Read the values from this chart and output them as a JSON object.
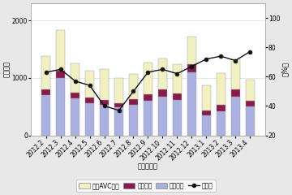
{
  "categories": [
    "2012.2",
    "2012.3",
    "2012.4",
    "2012.5",
    "2012.6",
    "2012.7",
    "2012.8",
    "2012.9",
    "2012.10",
    "2012.11",
    "2012.12",
    "2013.1",
    "2013.2",
    "2013.3",
    "2013.4"
  ],
  "映像機器": [
    700,
    1000,
    650,
    560,
    530,
    490,
    530,
    600,
    680,
    620,
    1100,
    350,
    420,
    680,
    510
  ],
  "音声機器": [
    100,
    130,
    100,
    95,
    90,
    75,
    95,
    115,
    125,
    115,
    145,
    85,
    115,
    125,
    95
  ],
  "カーAVC機器": [
    580,
    700,
    500,
    470,
    540,
    430,
    440,
    550,
    530,
    510,
    480,
    440,
    550,
    520,
    360
  ],
  "前年比": [
    63,
    65,
    57,
    54,
    40,
    37,
    50,
    63,
    65,
    62,
    67,
    72,
    74,
    71,
    77
  ],
  "bar_colors": {
    "カーAVC機器": "#f0f0c0",
    "音声機器": "#8b1a4a",
    "映像機器": "#aab0e0"
  },
  "line_color": "#111111",
  "background_color": "#e8e8e8",
  "plot_bg": "#ffffff",
  "ylabel_left": "（億円）",
  "ylabel_right": "（%）",
  "xlabel": "（年・月）",
  "ylim_left": [
    0,
    2300
  ],
  "ylim_right": [
    20,
    110
  ],
  "yticks_left": [
    0,
    1000,
    2000
  ],
  "yticks_right": [
    20,
    40,
    60,
    80,
    100
  ],
  "legend_labels": [
    "カーAVC機器",
    "音声機器",
    "映像機器",
    "前年比"
  ],
  "tick_fontsize": 5.5,
  "label_fontsize": 6,
  "legend_fontsize": 5.5
}
